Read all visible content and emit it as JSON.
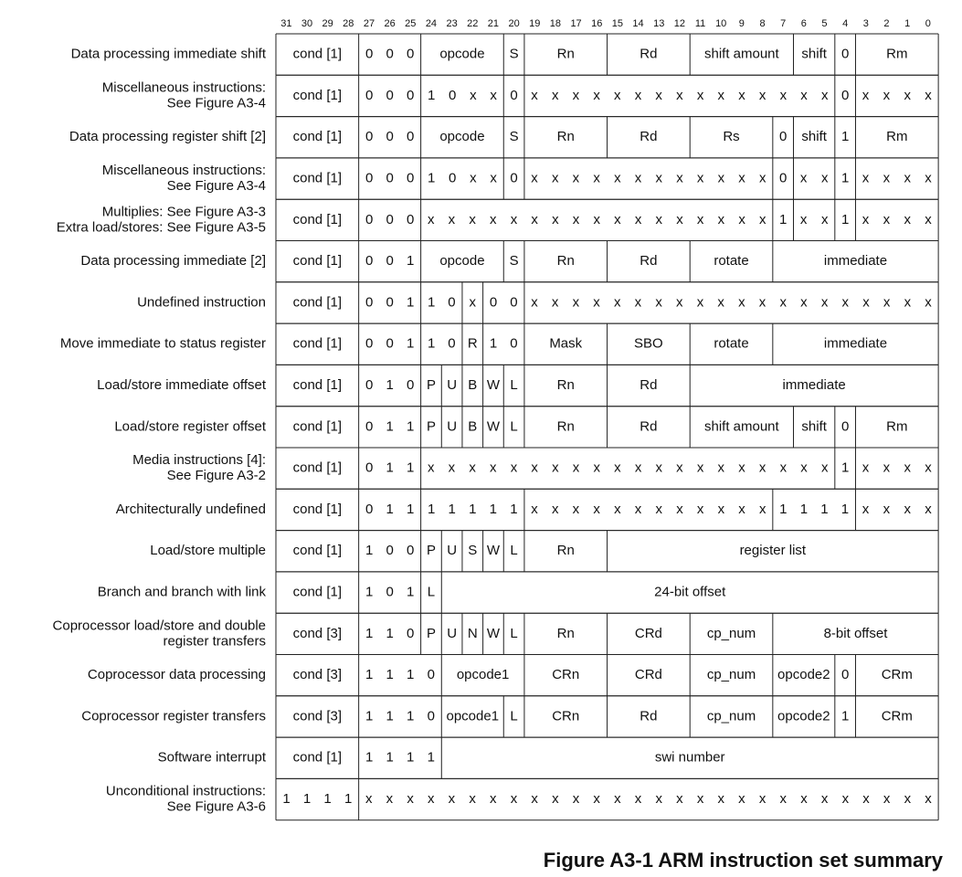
{
  "header": {
    "bits": [
      31,
      30,
      29,
      28,
      27,
      26,
      25,
      24,
      23,
      22,
      21,
      20,
      19,
      18,
      17,
      16,
      15,
      14,
      13,
      12,
      11,
      10,
      9,
      8,
      7,
      6,
      5,
      4,
      3,
      2,
      1,
      0
    ]
  },
  "rows": [
    {
      "label": [
        "Data processing immediate shift"
      ],
      "fields": [
        "cond [1]",
        "0 0 0",
        "opcode",
        "S",
        "Rn",
        "Rd",
        "shift amount",
        "shift",
        "0",
        "Rm"
      ]
    },
    {
      "label": [
        "Miscellaneous instructions:",
        "See Figure A3-4"
      ],
      "fields": [
        "cond [1]",
        "0 0 0",
        "1 0 x x",
        "0",
        "x x x x x x x x x x x x x x x",
        "0",
        "x x x x"
      ]
    },
    {
      "label": [
        "Data processing register shift [2]"
      ],
      "fields": [
        "cond [1]",
        "0 0 0",
        "opcode",
        "S",
        "Rn",
        "Rd",
        "Rs",
        "0",
        "shift",
        "1",
        "Rm"
      ]
    },
    {
      "label": [
        "Miscellaneous instructions:",
        "See Figure A3-4"
      ],
      "fields": [
        "cond [1]",
        "0 0 0",
        "1 0 x x",
        "0",
        "x x x x x x x x x x x x",
        "0",
        "x x",
        "1",
        "x x x x"
      ]
    },
    {
      "label": [
        "Multiplies: See Figure A3-3",
        "Extra load/stores: See Figure A3-5"
      ],
      "fields": [
        "cond [1]",
        "0 0 0",
        "x x x x x x x x x x x x x x x x x",
        "1",
        "x x",
        "1",
        "x x x x"
      ]
    },
    {
      "label": [
        "Data processing immediate [2]"
      ],
      "fields": [
        "cond [1]",
        "0 0 1",
        "opcode",
        "S",
        "Rn",
        "Rd",
        "rotate",
        "immediate"
      ]
    },
    {
      "label": [
        "Undefined instruction"
      ],
      "fields": [
        "cond [1]",
        "0 0 1",
        "1 0",
        "x",
        "0 0",
        "x x x x x x x x x x x x x x x x x x x x"
      ]
    },
    {
      "label": [
        "Move immediate to status register"
      ],
      "fields": [
        "cond [1]",
        "0 0 1",
        "1 0",
        "R",
        "1 0",
        "Mask",
        "SBO",
        "rotate",
        "immediate"
      ]
    },
    {
      "label": [
        "Load/store immediate offset"
      ],
      "fields": [
        "cond [1]",
        "0 1 0",
        "P",
        "U",
        "B",
        "W",
        "L",
        "Rn",
        "Rd",
        "immediate"
      ]
    },
    {
      "label": [
        "Load/store register offset"
      ],
      "fields": [
        "cond [1]",
        "0 1 1",
        "P",
        "U",
        "B",
        "W",
        "L",
        "Rn",
        "Rd",
        "shift amount",
        "shift",
        "0",
        "Rm"
      ]
    },
    {
      "label": [
        "Media instructions [4]:",
        "See Figure A3-2"
      ],
      "fields": [
        "cond [1]",
        "0 1 1",
        "x x x x x x x x x x x x x x x x x x x x",
        "1",
        "x x x x"
      ]
    },
    {
      "label": [
        "Architecturally undefined"
      ],
      "fields": [
        "cond [1]",
        "0 1 1",
        "1 1 1 1 1",
        "x x x x x x x x x x x x",
        "1 1 1 1",
        "x x x x"
      ]
    },
    {
      "label": [
        "Load/store multiple"
      ],
      "fields": [
        "cond [1]",
        "1 0 0",
        "P",
        "U",
        "S",
        "W",
        "L",
        "Rn",
        "register list"
      ]
    },
    {
      "label": [
        "Branch and branch with link"
      ],
      "fields": [
        "cond [1]",
        "1 0 1",
        "L",
        "24-bit offset"
      ]
    },
    {
      "label": [
        "Coprocessor load/store and double",
        "register transfers"
      ],
      "fields": [
        "cond [3]",
        "1 1 0",
        "P",
        "U",
        "N",
        "W",
        "L",
        "Rn",
        "CRd",
        "cp_num",
        "8-bit offset"
      ]
    },
    {
      "label": [
        "Coprocessor data processing"
      ],
      "fields": [
        "cond [3]",
        "1 1 1 0",
        "opcode1",
        "CRn",
        "CRd",
        "cp_num",
        "opcode2",
        "0",
        "CRm"
      ]
    },
    {
      "label": [
        "Coprocessor register transfers"
      ],
      "fields": [
        "cond [3]",
        "1 1 1 0",
        "opcode1",
        "L",
        "CRn",
        "Rd",
        "cp_num",
        "opcode2",
        "1",
        "CRm"
      ]
    },
    {
      "label": [
        "Software interrupt"
      ],
      "fields": [
        "cond [1]",
        "1 1 1 1",
        "swi number"
      ]
    },
    {
      "label": [
        "Unconditional instructions:",
        "See Figure A3-6"
      ],
      "fields": [
        "1 1 1 1",
        "x x x x x x x x x x x x x x x x x x x x x x x x x x x x"
      ]
    }
  ],
  "caption": "Figure A3-1 ARM instruction set summary"
}
